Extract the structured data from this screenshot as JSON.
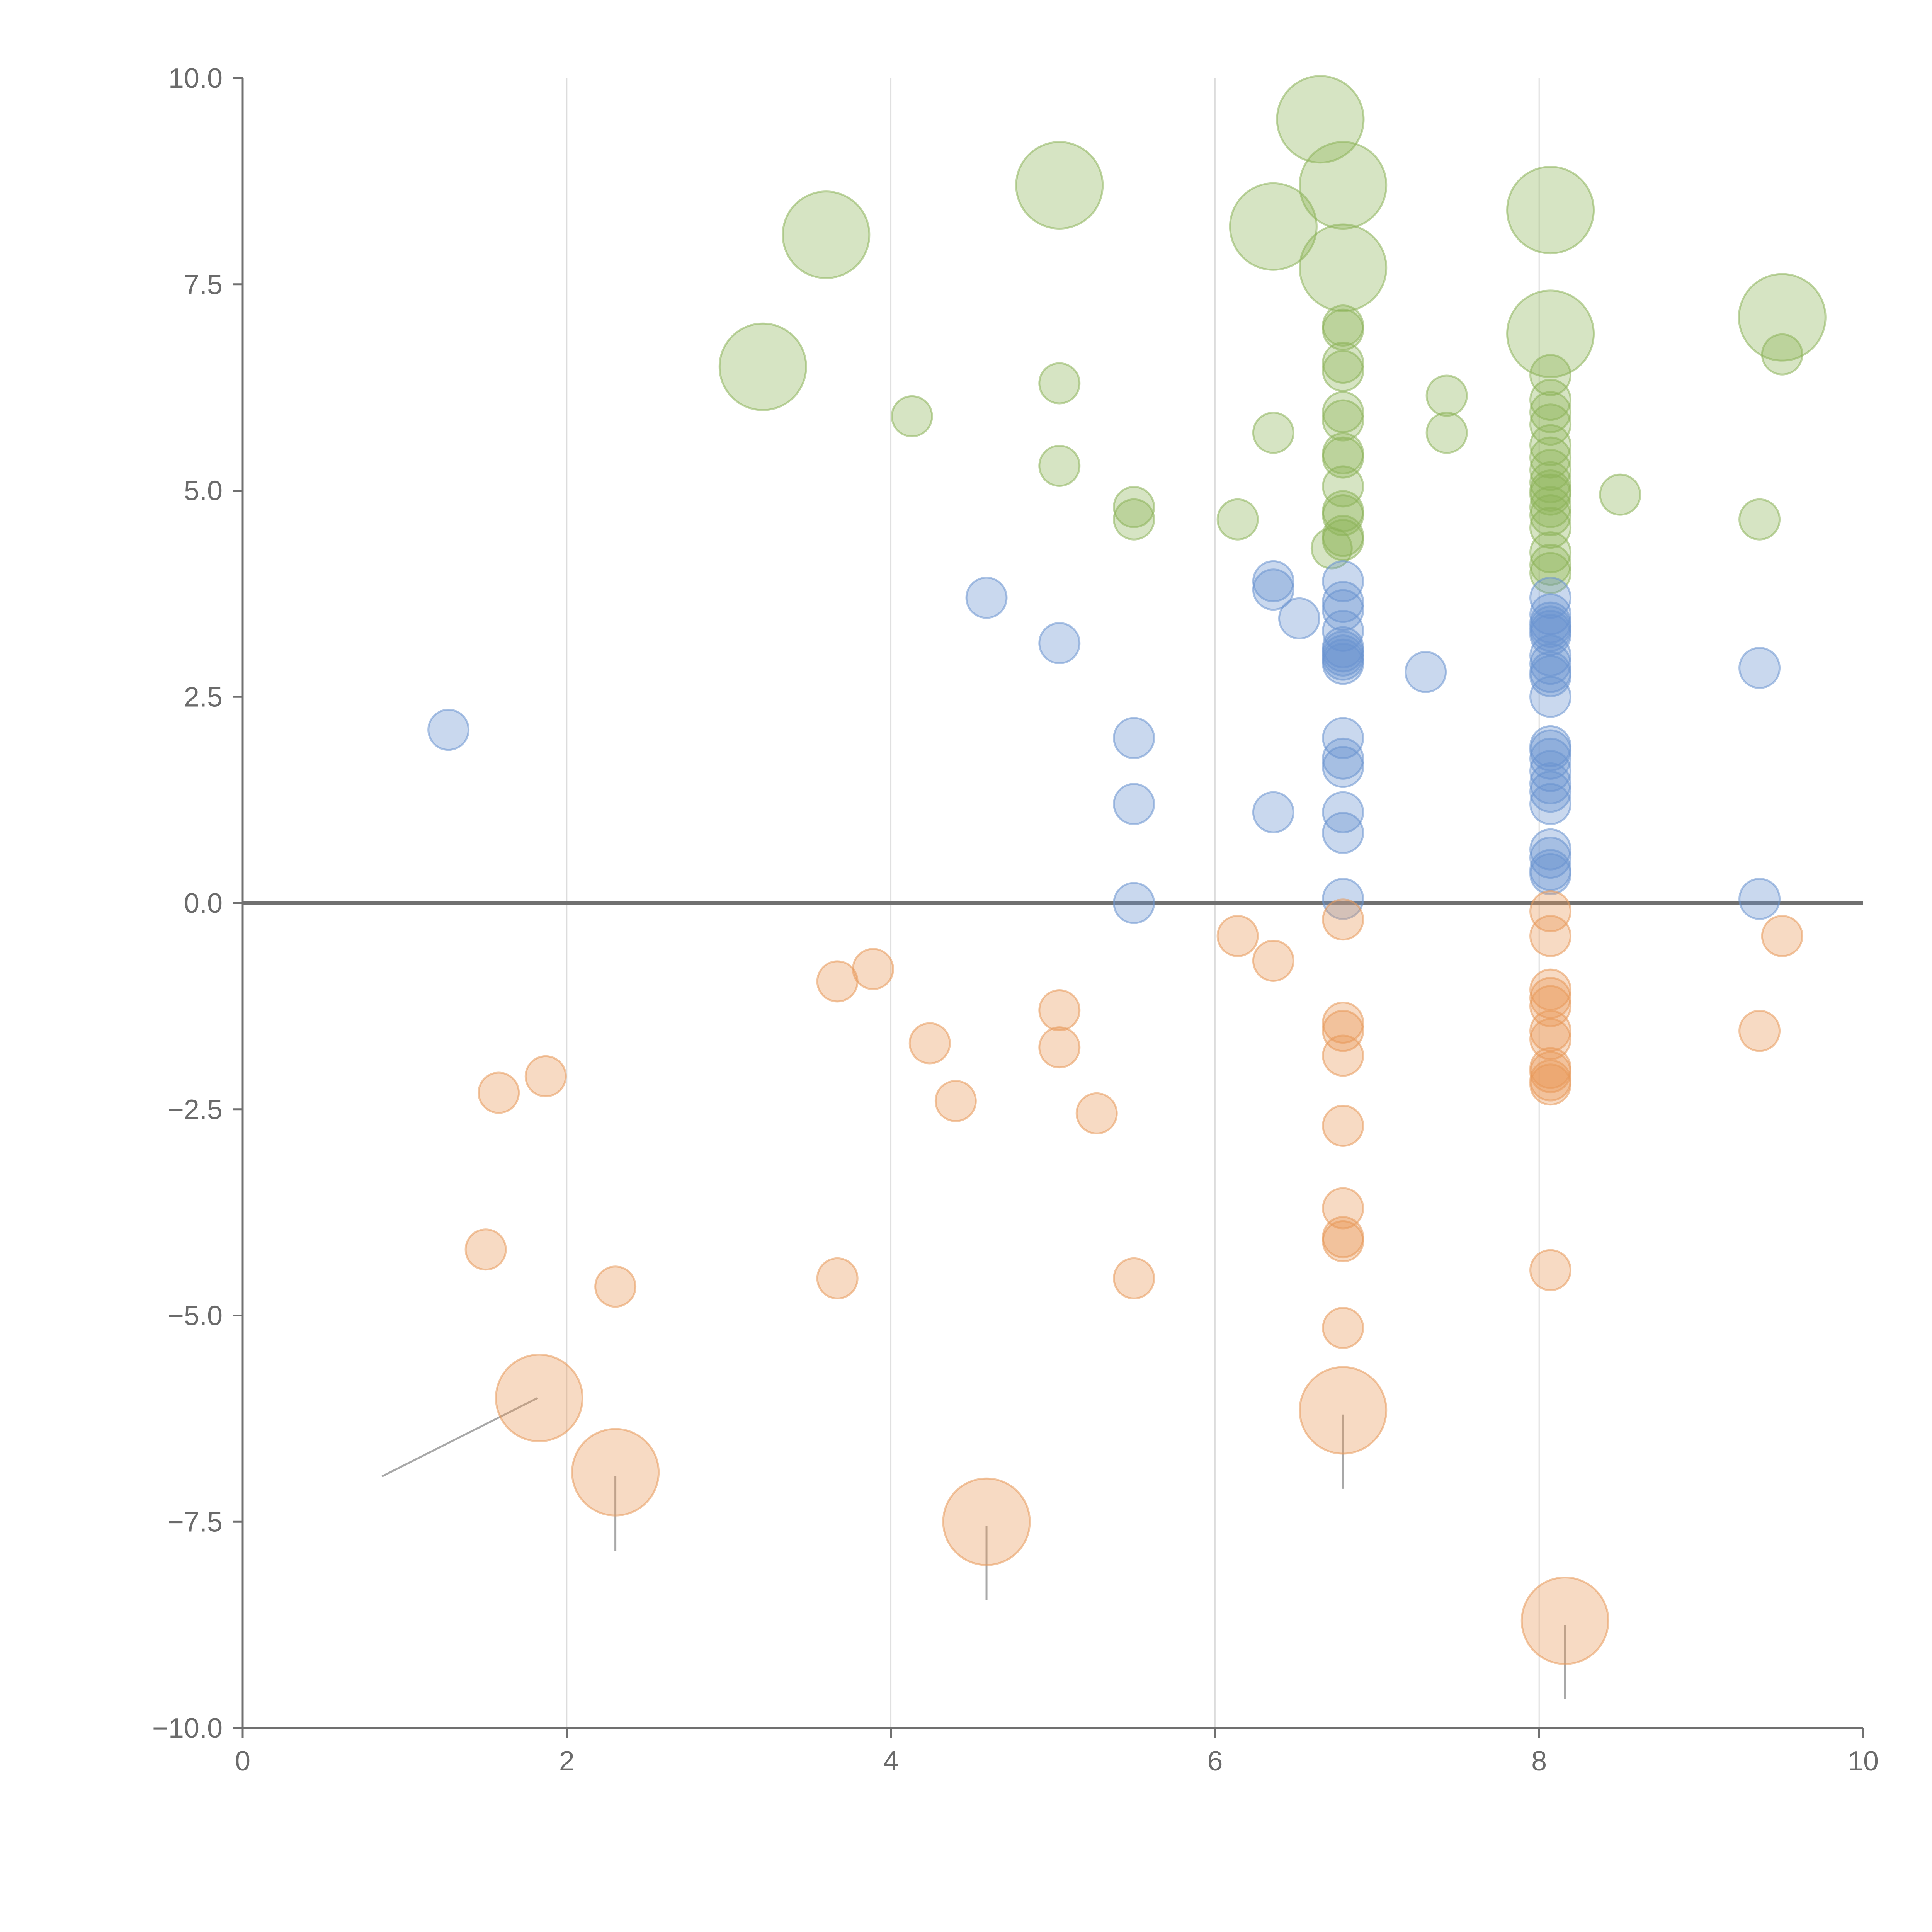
{
  "chart_data": {
    "type": "scatter",
    "title": "",
    "xlabel": "",
    "ylabel": "",
    "xlim": [
      0,
      10
    ],
    "ylim": [
      -10,
      10
    ],
    "grid": "vertical",
    "legend": "none",
    "x_ticks": [
      {
        "value": 0,
        "label": "0"
      },
      {
        "value": 2,
        "label": "2"
      },
      {
        "value": 4,
        "label": "4"
      },
      {
        "value": 6,
        "label": "6"
      },
      {
        "value": 8,
        "label": "8"
      },
      {
        "value": 10,
        "label": "10"
      }
    ],
    "y_ticks": [
      {
        "value": 10,
        "label": "10.0"
      },
      {
        "value": 7.5,
        "label": "7.5"
      },
      {
        "value": 5,
        "label": "5.0"
      },
      {
        "value": 2.5,
        "label": "2.5"
      },
      {
        "value": 0,
        "label": "0.0"
      },
      {
        "value": -2.5,
        "label": "−2.5"
      },
      {
        "value": -5,
        "label": "−5.0"
      },
      {
        "value": -7.5,
        "label": "−7.5"
      },
      {
        "value": -10,
        "label": "−10.0"
      }
    ],
    "series": [
      {
        "name": "green",
        "color": "#8db35a",
        "points": [
          {
            "x": 6.65,
            "y": 9.5,
            "size": "large"
          },
          {
            "x": 5.04,
            "y": 8.7,
            "size": "large"
          },
          {
            "x": 6.79,
            "y": 8.7,
            "size": "large"
          },
          {
            "x": 8.07,
            "y": 8.4,
            "size": "large"
          },
          {
            "x": 6.36,
            "y": 8.2,
            "size": "large"
          },
          {
            "x": 3.6,
            "y": 8.1,
            "size": "large"
          },
          {
            "x": 6.79,
            "y": 7.7,
            "size": "large"
          },
          {
            "x": 9.5,
            "y": 7.1,
            "size": "large"
          },
          {
            "x": 8.07,
            "y": 6.9,
            "size": "large"
          },
          {
            "x": 3.21,
            "y": 6.5,
            "size": "large"
          },
          {
            "x": 6.79,
            "y": 7.0,
            "size": "small"
          },
          {
            "x": 6.79,
            "y": 6.95,
            "size": "small"
          },
          {
            "x": 9.5,
            "y": 6.65,
            "size": "small"
          },
          {
            "x": 6.79,
            "y": 6.55,
            "size": "small"
          },
          {
            "x": 6.79,
            "y": 6.45,
            "size": "small"
          },
          {
            "x": 8.07,
            "y": 6.4,
            "size": "small"
          },
          {
            "x": 5.04,
            "y": 6.3,
            "size": "small"
          },
          {
            "x": 7.43,
            "y": 6.15,
            "size": "small"
          },
          {
            "x": 8.07,
            "y": 6.1,
            "size": "small"
          },
          {
            "x": 8.07,
            "y": 5.95,
            "size": "small"
          },
          {
            "x": 6.79,
            "y": 5.95,
            "size": "small"
          },
          {
            "x": 4.13,
            "y": 5.9,
            "size": "small"
          },
          {
            "x": 6.79,
            "y": 5.85,
            "size": "small"
          },
          {
            "x": 8.07,
            "y": 5.8,
            "size": "small"
          },
          {
            "x": 6.36,
            "y": 5.7,
            "size": "small"
          },
          {
            "x": 7.43,
            "y": 5.7,
            "size": "small"
          },
          {
            "x": 8.07,
            "y": 5.55,
            "size": "small"
          },
          {
            "x": 6.79,
            "y": 5.45,
            "size": "small"
          },
          {
            "x": 6.79,
            "y": 5.4,
            "size": "small"
          },
          {
            "x": 8.07,
            "y": 5.4,
            "size": "small"
          },
          {
            "x": 5.04,
            "y": 5.3,
            "size": "small"
          },
          {
            "x": 8.07,
            "y": 5.25,
            "size": "small"
          },
          {
            "x": 8.07,
            "y": 5.1,
            "size": "small"
          },
          {
            "x": 6.79,
            "y": 5.05,
            "size": "small"
          },
          {
            "x": 8.07,
            "y": 5.0,
            "size": "small"
          },
          {
            "x": 8.07,
            "y": 4.95,
            "size": "small"
          },
          {
            "x": 8.5,
            "y": 4.95,
            "size": "small"
          },
          {
            "x": 8.07,
            "y": 4.8,
            "size": "small"
          },
          {
            "x": 5.5,
            "y": 4.8,
            "size": "small"
          },
          {
            "x": 6.79,
            "y": 4.75,
            "size": "small"
          },
          {
            "x": 6.79,
            "y": 4.7,
            "size": "small"
          },
          {
            "x": 8.07,
            "y": 4.7,
            "size": "small"
          },
          {
            "x": 5.5,
            "y": 4.65,
            "size": "small"
          },
          {
            "x": 6.14,
            "y": 4.65,
            "size": "small"
          },
          {
            "x": 9.36,
            "y": 4.65,
            "size": "small"
          },
          {
            "x": 8.07,
            "y": 4.55,
            "size": "small"
          },
          {
            "x": 6.79,
            "y": 4.45,
            "size": "small"
          },
          {
            "x": 6.79,
            "y": 4.4,
            "size": "small"
          },
          {
            "x": 6.72,
            "y": 4.3,
            "size": "small"
          },
          {
            "x": 8.07,
            "y": 4.25,
            "size": "small"
          },
          {
            "x": 8.07,
            "y": 4.1,
            "size": "small"
          },
          {
            "x": 8.07,
            "y": 4.0,
            "size": "small"
          }
        ]
      },
      {
        "name": "blue",
        "color": "#6a93cf",
        "points": [
          {
            "x": 6.36,
            "y": 3.9,
            "size": "small"
          },
          {
            "x": 6.79,
            "y": 3.9,
            "size": "small"
          },
          {
            "x": 6.36,
            "y": 3.8,
            "size": "small"
          },
          {
            "x": 4.59,
            "y": 3.7,
            "size": "small"
          },
          {
            "x": 8.07,
            "y": 3.7,
            "size": "small"
          },
          {
            "x": 6.79,
            "y": 3.65,
            "size": "small"
          },
          {
            "x": 6.79,
            "y": 3.55,
            "size": "small"
          },
          {
            "x": 8.07,
            "y": 3.5,
            "size": "small"
          },
          {
            "x": 6.52,
            "y": 3.45,
            "size": "small"
          },
          {
            "x": 8.07,
            "y": 3.4,
            "size": "small"
          },
          {
            "x": 8.07,
            "y": 3.35,
            "size": "small"
          },
          {
            "x": 6.79,
            "y": 3.3,
            "size": "small"
          },
          {
            "x": 8.07,
            "y": 3.3,
            "size": "small"
          },
          {
            "x": 8.07,
            "y": 3.25,
            "size": "small"
          },
          {
            "x": 5.04,
            "y": 3.15,
            "size": "small"
          },
          {
            "x": 6.79,
            "y": 3.1,
            "size": "small"
          },
          {
            "x": 6.79,
            "y": 3.05,
            "size": "small"
          },
          {
            "x": 6.79,
            "y": 3.0,
            "size": "small"
          },
          {
            "x": 8.07,
            "y": 3.0,
            "size": "small"
          },
          {
            "x": 6.79,
            "y": 2.95,
            "size": "small"
          },
          {
            "x": 6.79,
            "y": 2.9,
            "size": "small"
          },
          {
            "x": 8.07,
            "y": 2.9,
            "size": "small"
          },
          {
            "x": 9.36,
            "y": 2.85,
            "size": "small"
          },
          {
            "x": 7.3,
            "y": 2.8,
            "size": "small"
          },
          {
            "x": 8.07,
            "y": 2.8,
            "size": "small"
          },
          {
            "x": 8.07,
            "y": 2.75,
            "size": "small"
          },
          {
            "x": 8.07,
            "y": 2.5,
            "size": "small"
          },
          {
            "x": 1.27,
            "y": 2.1,
            "size": "small"
          },
          {
            "x": 5.5,
            "y": 2.0,
            "size": "small"
          },
          {
            "x": 6.79,
            "y": 2.0,
            "size": "small"
          },
          {
            "x": 8.07,
            "y": 1.9,
            "size": "small"
          },
          {
            "x": 8.07,
            "y": 1.85,
            "size": "small"
          },
          {
            "x": 8.07,
            "y": 1.75,
            "size": "small"
          },
          {
            "x": 6.79,
            "y": 1.75,
            "size": "small"
          },
          {
            "x": 6.79,
            "y": 1.65,
            "size": "small"
          },
          {
            "x": 8.07,
            "y": 1.6,
            "size": "small"
          },
          {
            "x": 8.07,
            "y": 1.45,
            "size": "small"
          },
          {
            "x": 8.07,
            "y": 1.35,
            "size": "small"
          },
          {
            "x": 8.07,
            "y": 1.2,
            "size": "small"
          },
          {
            "x": 5.5,
            "y": 1.2,
            "size": "small"
          },
          {
            "x": 6.36,
            "y": 1.1,
            "size": "small"
          },
          {
            "x": 6.79,
            "y": 1.1,
            "size": "small"
          },
          {
            "x": 6.79,
            "y": 0.85,
            "size": "small"
          },
          {
            "x": 8.07,
            "y": 0.65,
            "size": "small"
          },
          {
            "x": 8.07,
            "y": 0.55,
            "size": "small"
          },
          {
            "x": 8.07,
            "y": 0.4,
            "size": "small"
          },
          {
            "x": 8.07,
            "y": 0.35,
            "size": "small"
          },
          {
            "x": 6.79,
            "y": 0.05,
            "size": "small"
          },
          {
            "x": 9.36,
            "y": 0.05,
            "size": "small"
          },
          {
            "x": 5.5,
            "y": 0.0,
            "size": "small"
          }
        ]
      },
      {
        "name": "orange",
        "color": "#e8995a",
        "points": [
          {
            "x": 6.79,
            "y": -0.2,
            "size": "small"
          },
          {
            "x": 8.07,
            "y": -0.1,
            "size": "small"
          },
          {
            "x": 6.14,
            "y": -0.4,
            "size": "small"
          },
          {
            "x": 8.07,
            "y": -0.4,
            "size": "small"
          },
          {
            "x": 9.5,
            "y": -0.4,
            "size": "small"
          },
          {
            "x": 6.36,
            "y": -0.7,
            "size": "small"
          },
          {
            "x": 3.89,
            "y": -0.8,
            "size": "small"
          },
          {
            "x": 3.67,
            "y": -0.95,
            "size": "small"
          },
          {
            "x": 8.07,
            "y": -1.05,
            "size": "small"
          },
          {
            "x": 8.07,
            "y": -1.15,
            "size": "small"
          },
          {
            "x": 8.07,
            "y": -1.25,
            "size": "small"
          },
          {
            "x": 5.04,
            "y": -1.3,
            "size": "small"
          },
          {
            "x": 6.79,
            "y": -1.45,
            "size": "small"
          },
          {
            "x": 6.79,
            "y": -1.55,
            "size": "small"
          },
          {
            "x": 8.07,
            "y": -1.55,
            "size": "small"
          },
          {
            "x": 9.36,
            "y": -1.55,
            "size": "small"
          },
          {
            "x": 8.07,
            "y": -1.65,
            "size": "small"
          },
          {
            "x": 4.24,
            "y": -1.7,
            "size": "small"
          },
          {
            "x": 5.04,
            "y": -1.75,
            "size": "small"
          },
          {
            "x": 6.79,
            "y": -1.85,
            "size": "small"
          },
          {
            "x": 8.07,
            "y": -2.0,
            "size": "small"
          },
          {
            "x": 8.07,
            "y": -2.05,
            "size": "small"
          },
          {
            "x": 1.87,
            "y": -2.1,
            "size": "small"
          },
          {
            "x": 8.07,
            "y": -2.15,
            "size": "small"
          },
          {
            "x": 8.07,
            "y": -2.2,
            "size": "small"
          },
          {
            "x": 1.58,
            "y": -2.3,
            "size": "small"
          },
          {
            "x": 4.4,
            "y": -2.4,
            "size": "small"
          },
          {
            "x": 5.27,
            "y": -2.55,
            "size": "small"
          },
          {
            "x": 6.79,
            "y": -2.7,
            "size": "small"
          },
          {
            "x": 6.79,
            "y": -3.7,
            "size": "small"
          },
          {
            "x": 6.79,
            "y": -4.05,
            "size": "small"
          },
          {
            "x": 6.79,
            "y": -4.1,
            "size": "small"
          },
          {
            "x": 1.5,
            "y": -4.2,
            "size": "small"
          },
          {
            "x": 8.07,
            "y": -4.45,
            "size": "small"
          },
          {
            "x": 3.67,
            "y": -4.55,
            "size": "small"
          },
          {
            "x": 5.5,
            "y": -4.55,
            "size": "small"
          },
          {
            "x": 2.3,
            "y": -4.65,
            "size": "small"
          },
          {
            "x": 6.79,
            "y": -5.15,
            "size": "small"
          },
          {
            "x": 1.83,
            "y": -6.0,
            "size": "large"
          },
          {
            "x": 6.79,
            "y": -6.15,
            "size": "large"
          },
          {
            "x": 2.3,
            "y": -6.9,
            "size": "large"
          },
          {
            "x": 4.59,
            "y": -7.5,
            "size": "large"
          },
          {
            "x": 8.16,
            "y": -8.7,
            "size": "large"
          }
        ]
      }
    ],
    "leader_lines": [
      {
        "x1": 1.82,
        "y1": -6.0,
        "x2": 0.86,
        "y2": -6.95
      },
      {
        "x1": 2.3,
        "y1": -6.95,
        "x2": 2.3,
        "y2": -7.85
      },
      {
        "x1": 4.59,
        "y1": -7.55,
        "x2": 4.59,
        "y2": -8.45
      },
      {
        "x1": 6.79,
        "y1": -6.2,
        "x2": 6.79,
        "y2": -7.1
      },
      {
        "x1": 8.16,
        "y1": -8.75,
        "x2": 8.16,
        "y2": -9.65
      }
    ]
  }
}
